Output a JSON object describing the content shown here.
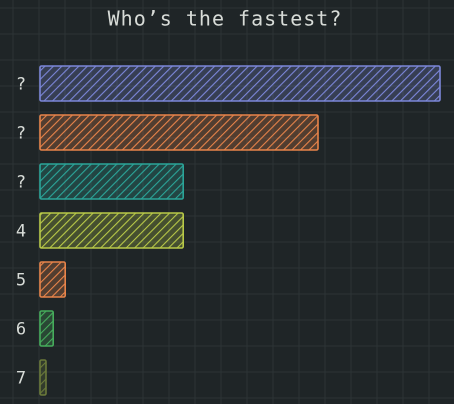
{
  "chart_data": {
    "type": "bar",
    "orientation": "horizontal",
    "title": "Who’s the fastest?",
    "categories": [
      "?",
      "?",
      "?",
      "4",
      "5",
      "6",
      "7"
    ],
    "values": [
      100,
      69.5,
      35.8,
      35.8,
      6.3,
      3.3,
      1.5
    ],
    "colors": [
      "#7c87d9",
      "#e8844a",
      "#2ba599",
      "#b9ca48",
      "#e8844a",
      "#46ad5c",
      "#6b7a3a"
    ],
    "grid": true
  }
}
